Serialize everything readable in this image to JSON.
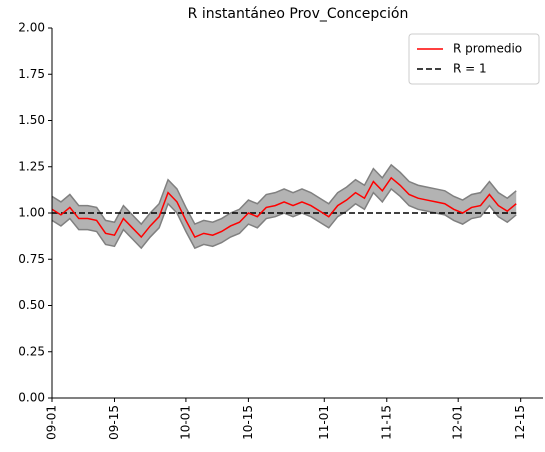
{
  "chart_data": {
    "type": "line",
    "title": "R instantáneo Prov_Concepción",
    "x": [
      "09-01",
      "09-03",
      "09-05",
      "09-07",
      "09-09",
      "09-11",
      "09-13",
      "09-15",
      "09-17",
      "09-19",
      "09-21",
      "09-23",
      "09-25",
      "09-27",
      "09-29",
      "10-01",
      "10-03",
      "10-05",
      "10-07",
      "10-09",
      "10-11",
      "10-13",
      "10-15",
      "10-17",
      "10-19",
      "10-21",
      "10-23",
      "10-25",
      "10-27",
      "10-29",
      "10-31",
      "11-02",
      "11-04",
      "11-06",
      "11-08",
      "11-10",
      "11-12",
      "11-14",
      "11-16",
      "11-18",
      "11-20",
      "11-22",
      "11-24",
      "11-26",
      "11-28",
      "11-30",
      "12-02",
      "12-04",
      "12-06",
      "12-08",
      "12-10",
      "12-12",
      "12-14"
    ],
    "series": [
      {
        "name": "R promedio",
        "color": "#ff0000",
        "values": [
          1.02,
          0.99,
          1.03,
          0.97,
          0.97,
          0.96,
          0.89,
          0.88,
          0.97,
          0.92,
          0.87,
          0.93,
          0.98,
          1.11,
          1.06,
          0.96,
          0.87,
          0.89,
          0.88,
          0.9,
          0.93,
          0.95,
          1.0,
          0.98,
          1.03,
          1.04,
          1.06,
          1.04,
          1.06,
          1.04,
          1.01,
          0.98,
          1.04,
          1.07,
          1.11,
          1.08,
          1.17,
          1.12,
          1.19,
          1.15,
          1.1,
          1.08,
          1.07,
          1.06,
          1.05,
          1.02,
          1.0,
          1.03,
          1.04,
          1.1,
          1.04,
          1.01,
          1.05
        ]
      }
    ],
    "band": {
      "color": "#b3b3b3",
      "edge_color": "#808080",
      "lower": [
        0.96,
        0.93,
        0.97,
        0.91,
        0.91,
        0.9,
        0.83,
        0.82,
        0.91,
        0.86,
        0.81,
        0.87,
        0.92,
        1.05,
        1.0,
        0.9,
        0.81,
        0.83,
        0.82,
        0.84,
        0.87,
        0.89,
        0.94,
        0.92,
        0.97,
        0.98,
        1.0,
        0.98,
        1.0,
        0.98,
        0.95,
        0.92,
        0.98,
        1.01,
        1.05,
        1.02,
        1.11,
        1.06,
        1.13,
        1.09,
        1.04,
        1.02,
        1.01,
        1.0,
        0.99,
        0.96,
        0.94,
        0.97,
        0.98,
        1.04,
        0.98,
        0.95,
        0.99
      ],
      "upper": [
        1.09,
        1.06,
        1.1,
        1.04,
        1.04,
        1.03,
        0.96,
        0.95,
        1.04,
        0.99,
        0.94,
        1.0,
        1.05,
        1.18,
        1.13,
        1.03,
        0.94,
        0.96,
        0.95,
        0.97,
        1.0,
        1.02,
        1.07,
        1.05,
        1.1,
        1.11,
        1.13,
        1.11,
        1.13,
        1.11,
        1.08,
        1.05,
        1.11,
        1.14,
        1.18,
        1.15,
        1.24,
        1.19,
        1.26,
        1.22,
        1.17,
        1.15,
        1.14,
        1.13,
        1.12,
        1.09,
        1.07,
        1.1,
        1.11,
        1.17,
        1.11,
        1.08,
        1.12
      ]
    },
    "reference_line": {
      "name": "R = 1",
      "value": 1,
      "color": "#000000",
      "style": "dashed"
    },
    "xlim": [
      "09-01",
      "12-20"
    ],
    "xticks": [
      "09-01",
      "09-15",
      "10-01",
      "10-15",
      "11-01",
      "11-15",
      "12-01",
      "12-15"
    ],
    "ylim": [
      0,
      2
    ],
    "yticks": [
      {
        "value": 0,
        "label": "0.00"
      },
      {
        "value": 0.25,
        "label": "0.25"
      },
      {
        "value": 0.5,
        "label": "0.50"
      },
      {
        "value": 0.75,
        "label": "0.75"
      },
      {
        "value": 1,
        "label": "1.00"
      },
      {
        "value": 1.25,
        "label": "1.25"
      },
      {
        "value": 1.5,
        "label": "1.50"
      },
      {
        "value": 1.75,
        "label": "1.75"
      },
      {
        "value": 2,
        "label": "2.00"
      }
    ],
    "legend": "upper right"
  }
}
